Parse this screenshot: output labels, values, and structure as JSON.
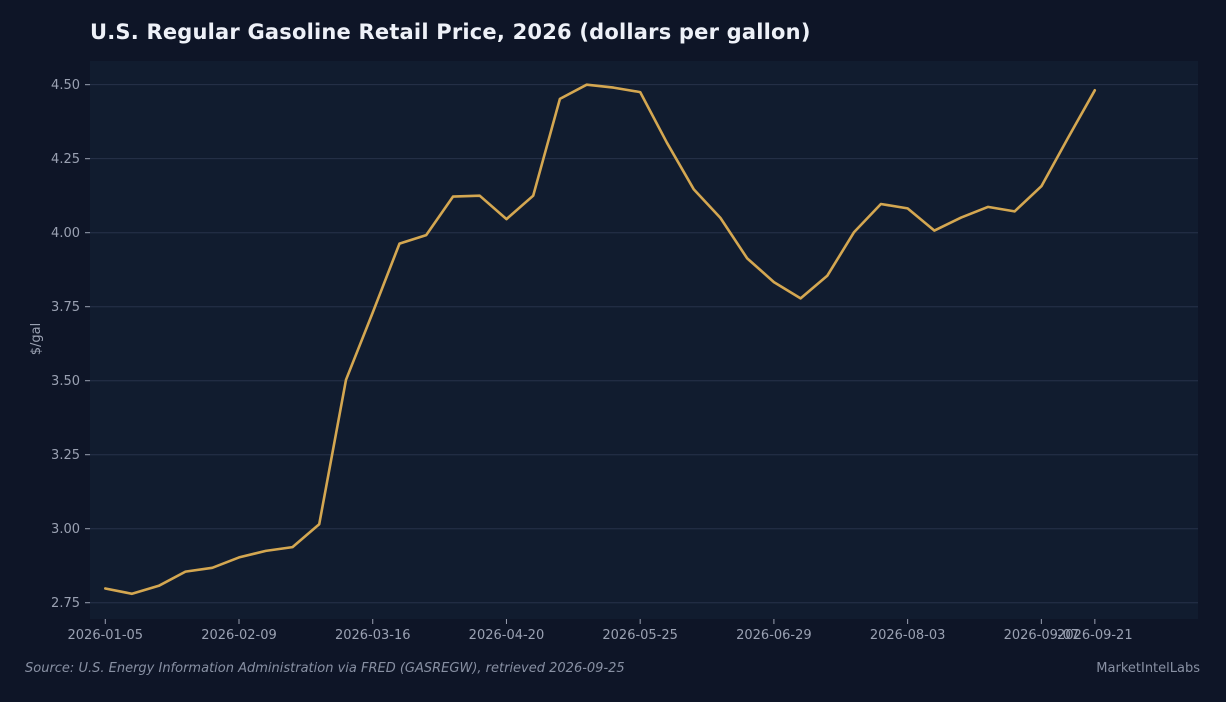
{
  "colors": {
    "background": "#0e1527",
    "plot_background": "#111c2f",
    "grid": "#27324a",
    "line": "#d4a751",
    "text": "#eef1f8",
    "muted": "#9aa1b2"
  },
  "footer": {
    "source": "Source: U.S. Energy Information Administration via FRED (GASREGW), retrieved 2026-09-25",
    "brand": "MarketIntelLabs"
  },
  "chart_data": {
    "type": "line",
    "title": "U.S. Regular Gasoline Retail Price, 2026 (dollars per gallon)",
    "xlabel": "",
    "ylabel": "$/gal",
    "x_tick_labels": [
      "2026-01-05",
      "2026-02-09",
      "2026-03-16",
      "2026-04-20",
      "2026-05-25",
      "2026-06-29",
      "2026-08-03",
      "2026-09-07",
      "2026-09-21"
    ],
    "y_ticks": [
      2.75,
      3.0,
      3.25,
      3.5,
      3.75,
      4.0,
      4.25,
      4.5
    ],
    "y_tick_labels": [
      "2.75",
      "3.00",
      "3.25",
      "3.50",
      "3.75",
      "4.00",
      "4.25",
      "4.50"
    ],
    "ylim": [
      2.695,
      4.58
    ],
    "xlim": [
      "2026-01-01",
      "2026-10-18"
    ],
    "grid": true,
    "legend": "none",
    "series": [
      {
        "x": [
          "2026-01-05",
          "2026-01-12",
          "2026-01-19",
          "2026-01-26",
          "2026-02-02",
          "2026-02-09",
          "2026-02-16",
          "2026-02-23",
          "2026-03-02",
          "2026-03-09",
          "2026-03-16",
          "2026-03-23",
          "2026-03-30",
          "2026-04-06",
          "2026-04-13",
          "2026-04-20",
          "2026-04-27",
          "2026-05-04",
          "2026-05-11",
          "2026-05-18",
          "2026-05-25",
          "2026-06-01",
          "2026-06-08",
          "2026-06-15",
          "2026-06-22",
          "2026-06-29",
          "2026-07-06",
          "2026-07-13",
          "2026-07-20",
          "2026-07-27",
          "2026-08-03",
          "2026-08-10",
          "2026-08-17",
          "2026-08-24",
          "2026-08-31",
          "2026-09-07",
          "2026-09-14",
          "2026-09-21"
        ],
        "values": [
          2.798,
          2.78,
          2.807,
          2.855,
          2.868,
          2.903,
          2.925,
          2.938,
          3.015,
          3.503,
          3.73,
          3.963,
          3.992,
          4.122,
          4.125,
          4.046,
          4.125,
          4.452,
          4.5,
          4.49,
          4.475,
          4.304,
          4.147,
          4.05,
          3.913,
          3.833,
          3.778,
          3.855,
          4.002,
          4.097,
          4.082,
          4.007,
          4.051,
          4.087,
          4.072,
          4.157,
          4.321,
          4.481
        ]
      }
    ]
  }
}
